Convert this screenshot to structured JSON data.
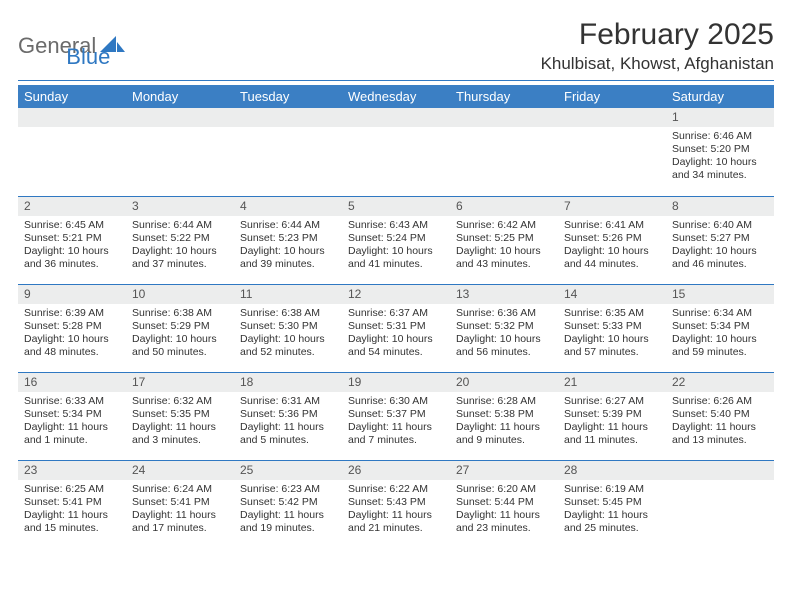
{
  "brand": {
    "general": "General",
    "blue": "Blue"
  },
  "title": "February 2025",
  "location": "Khulbisat, Khowst, Afghanistan",
  "colors": {
    "header_bg": "#3b7fc4",
    "accent": "#2f78c2",
    "daynum_bg": "#eceded",
    "text": "#333333",
    "logo_gray": "#6b6b6b"
  },
  "day_labels": [
    "Sunday",
    "Monday",
    "Tuesday",
    "Wednesday",
    "Thursday",
    "Friday",
    "Saturday"
  ],
  "weeks": [
    [
      {
        "n": "",
        "lines": []
      },
      {
        "n": "",
        "lines": []
      },
      {
        "n": "",
        "lines": []
      },
      {
        "n": "",
        "lines": []
      },
      {
        "n": "",
        "lines": []
      },
      {
        "n": "",
        "lines": []
      },
      {
        "n": "1",
        "lines": [
          "Sunrise: 6:46 AM",
          "Sunset: 5:20 PM",
          "Daylight: 10 hours and 34 minutes."
        ]
      }
    ],
    [
      {
        "n": "2",
        "lines": [
          "Sunrise: 6:45 AM",
          "Sunset: 5:21 PM",
          "Daylight: 10 hours and 36 minutes."
        ]
      },
      {
        "n": "3",
        "lines": [
          "Sunrise: 6:44 AM",
          "Sunset: 5:22 PM",
          "Daylight: 10 hours and 37 minutes."
        ]
      },
      {
        "n": "4",
        "lines": [
          "Sunrise: 6:44 AM",
          "Sunset: 5:23 PM",
          "Daylight: 10 hours and 39 minutes."
        ]
      },
      {
        "n": "5",
        "lines": [
          "Sunrise: 6:43 AM",
          "Sunset: 5:24 PM",
          "Daylight: 10 hours and 41 minutes."
        ]
      },
      {
        "n": "6",
        "lines": [
          "Sunrise: 6:42 AM",
          "Sunset: 5:25 PM",
          "Daylight: 10 hours and 43 minutes."
        ]
      },
      {
        "n": "7",
        "lines": [
          "Sunrise: 6:41 AM",
          "Sunset: 5:26 PM",
          "Daylight: 10 hours and 44 minutes."
        ]
      },
      {
        "n": "8",
        "lines": [
          "Sunrise: 6:40 AM",
          "Sunset: 5:27 PM",
          "Daylight: 10 hours and 46 minutes."
        ]
      }
    ],
    [
      {
        "n": "9",
        "lines": [
          "Sunrise: 6:39 AM",
          "Sunset: 5:28 PM",
          "Daylight: 10 hours and 48 minutes."
        ]
      },
      {
        "n": "10",
        "lines": [
          "Sunrise: 6:38 AM",
          "Sunset: 5:29 PM",
          "Daylight: 10 hours and 50 minutes."
        ]
      },
      {
        "n": "11",
        "lines": [
          "Sunrise: 6:38 AM",
          "Sunset: 5:30 PM",
          "Daylight: 10 hours and 52 minutes."
        ]
      },
      {
        "n": "12",
        "lines": [
          "Sunrise: 6:37 AM",
          "Sunset: 5:31 PM",
          "Daylight: 10 hours and 54 minutes."
        ]
      },
      {
        "n": "13",
        "lines": [
          "Sunrise: 6:36 AM",
          "Sunset: 5:32 PM",
          "Daylight: 10 hours and 56 minutes."
        ]
      },
      {
        "n": "14",
        "lines": [
          "Sunrise: 6:35 AM",
          "Sunset: 5:33 PM",
          "Daylight: 10 hours and 57 minutes."
        ]
      },
      {
        "n": "15",
        "lines": [
          "Sunrise: 6:34 AM",
          "Sunset: 5:34 PM",
          "Daylight: 10 hours and 59 minutes."
        ]
      }
    ],
    [
      {
        "n": "16",
        "lines": [
          "Sunrise: 6:33 AM",
          "Sunset: 5:34 PM",
          "Daylight: 11 hours and 1 minute."
        ]
      },
      {
        "n": "17",
        "lines": [
          "Sunrise: 6:32 AM",
          "Sunset: 5:35 PM",
          "Daylight: 11 hours and 3 minutes."
        ]
      },
      {
        "n": "18",
        "lines": [
          "Sunrise: 6:31 AM",
          "Sunset: 5:36 PM",
          "Daylight: 11 hours and 5 minutes."
        ]
      },
      {
        "n": "19",
        "lines": [
          "Sunrise: 6:30 AM",
          "Sunset: 5:37 PM",
          "Daylight: 11 hours and 7 minutes."
        ]
      },
      {
        "n": "20",
        "lines": [
          "Sunrise: 6:28 AM",
          "Sunset: 5:38 PM",
          "Daylight: 11 hours and 9 minutes."
        ]
      },
      {
        "n": "21",
        "lines": [
          "Sunrise: 6:27 AM",
          "Sunset: 5:39 PM",
          "Daylight: 11 hours and 11 minutes."
        ]
      },
      {
        "n": "22",
        "lines": [
          "Sunrise: 6:26 AM",
          "Sunset: 5:40 PM",
          "Daylight: 11 hours and 13 minutes."
        ]
      }
    ],
    [
      {
        "n": "23",
        "lines": [
          "Sunrise: 6:25 AM",
          "Sunset: 5:41 PM",
          "Daylight: 11 hours and 15 minutes."
        ]
      },
      {
        "n": "24",
        "lines": [
          "Sunrise: 6:24 AM",
          "Sunset: 5:41 PM",
          "Daylight: 11 hours and 17 minutes."
        ]
      },
      {
        "n": "25",
        "lines": [
          "Sunrise: 6:23 AM",
          "Sunset: 5:42 PM",
          "Daylight: 11 hours and 19 minutes."
        ]
      },
      {
        "n": "26",
        "lines": [
          "Sunrise: 6:22 AM",
          "Sunset: 5:43 PM",
          "Daylight: 11 hours and 21 minutes."
        ]
      },
      {
        "n": "27",
        "lines": [
          "Sunrise: 6:20 AM",
          "Sunset: 5:44 PM",
          "Daylight: 11 hours and 23 minutes."
        ]
      },
      {
        "n": "28",
        "lines": [
          "Sunrise: 6:19 AM",
          "Sunset: 5:45 PM",
          "Daylight: 11 hours and 25 minutes."
        ]
      },
      {
        "n": "",
        "lines": []
      }
    ]
  ]
}
